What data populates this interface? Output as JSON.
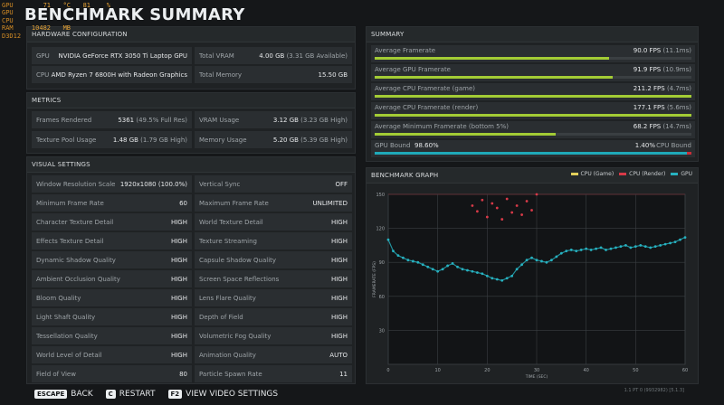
{
  "overlay": [
    {
      "k": "GPU",
      "v1": "71",
      "u1": "°C",
      "v2": "81",
      "u2": "%"
    },
    {
      "k": "GPU",
      "v1": "",
      "u1": "",
      "v2": "",
      "u2": ""
    },
    {
      "k": "CPU",
      "v1": "",
      "u1": "",
      "v2": "",
      "u2": ""
    },
    {
      "k": "RAM",
      "v1": "10482",
      "u1": "MB",
      "v2": "",
      "u2": ""
    },
    {
      "k": "D3D12",
      "v1": "",
      "u1": "",
      "v2": "",
      "u2": ""
    }
  ],
  "title": "BENCHMARK SUMMARY",
  "hardware": {
    "title": "HARDWARE CONFIGURATION",
    "gpu_label": "GPU",
    "gpu_value": "NVIDIA GeForce RTX 3050 Ti Laptop GPU",
    "vram_label": "Total VRAM",
    "vram_value": "4.00 GB",
    "vram_sub": "(3.31 GB Available)",
    "cpu_label": "CPU",
    "cpu_value": "AMD Ryzen 7 6800H with Radeon Graphics",
    "mem_label": "Total Memory",
    "mem_value": "15.50 GB"
  },
  "metrics": {
    "title": "METRICS",
    "frames_label": "Frames Rendered",
    "frames_value": "5361",
    "frames_sub": "(49.5% Full Res)",
    "vramu_label": "VRAM Usage",
    "vramu_value": "3.12 GB",
    "vramu_sub": "(3.23 GB High)",
    "pool_label": "Texture Pool Usage",
    "pool_value": "1.48 GB",
    "pool_sub": "(1.79 GB High)",
    "memu_label": "Memory Usage",
    "memu_value": "5.20 GB",
    "memu_sub": "(5.39 GB High)"
  },
  "visual": {
    "title": "VISUAL SETTINGS",
    "left": [
      {
        "k": "Window Resolution Scale",
        "v": "1920x1080 (100.0%)"
      },
      {
        "k": "Minimum Frame Rate",
        "v": "60"
      },
      {
        "k": "Character Texture Detail",
        "v": "HIGH"
      },
      {
        "k": "Effects Texture Detail",
        "v": "HIGH"
      },
      {
        "k": "Dynamic Shadow Quality",
        "v": "HIGH"
      },
      {
        "k": "Ambient Occlusion Quality",
        "v": "HIGH"
      },
      {
        "k": "Bloom Quality",
        "v": "HIGH"
      },
      {
        "k": "Light Shaft Quality",
        "v": "HIGH"
      },
      {
        "k": "Tessellation Quality",
        "v": "HIGH"
      },
      {
        "k": "World Level of Detail",
        "v": "HIGH"
      },
      {
        "k": "Field of View",
        "v": "80"
      }
    ],
    "right": [
      {
        "k": "Vertical Sync",
        "v": "OFF"
      },
      {
        "k": "Maximum Frame Rate",
        "v": "UNLIMITED"
      },
      {
        "k": "World Texture Detail",
        "v": "HIGH"
      },
      {
        "k": "Texture Streaming",
        "v": "HIGH"
      },
      {
        "k": "Capsule Shadow Quality",
        "v": "HIGH"
      },
      {
        "k": "Screen Space Reflections",
        "v": "HIGH"
      },
      {
        "k": "Lens Flare Quality",
        "v": "HIGH"
      },
      {
        "k": "Depth of Field",
        "v": "HIGH"
      },
      {
        "k": "Volumetric Fog Quality",
        "v": "HIGH"
      },
      {
        "k": "Animation Quality",
        "v": "AUTO"
      },
      {
        "k": "Particle Spawn Rate",
        "v": "11"
      }
    ]
  },
  "summary": {
    "title": "SUMMARY",
    "rows": [
      {
        "label": "Average Framerate",
        "value": "90.0 FPS",
        "sub": "(11.1ms)",
        "fill": 0.74
      },
      {
        "label": "Average GPU Framerate",
        "value": "91.9 FPS",
        "sub": "(10.9ms)",
        "fill": 0.75
      },
      {
        "label": "Average CPU Framerate (game)",
        "value": "211.2 FPS",
        "sub": "(4.7ms)",
        "fill": 1.0
      },
      {
        "label": "Average CPU Framerate (render)",
        "value": "177.1 FPS",
        "sub": "(5.6ms)",
        "fill": 1.0
      },
      {
        "label": "Average Minimum Framerate (bottom 5%)",
        "value": "68.2 FPS",
        "sub": "(14.7ms)",
        "fill": 0.57
      }
    ],
    "gpu_bound_label": "GPU Bound",
    "gpu_bound_value": "98.60%",
    "cpu_bound_value": "1.40%",
    "cpu_bound_label": "CPU Bound",
    "gpu_bound_fraction": 0.986
  },
  "graph": {
    "title": "BENCHMARK GRAPH",
    "legend": [
      {
        "name": "CPU (Game)",
        "color": "#e2cf5b"
      },
      {
        "name": "CPU (Render)",
        "color": "#d83a48"
      },
      {
        "name": "GPU",
        "color": "#27b2c0"
      }
    ]
  },
  "chart_data": {
    "type": "scatter",
    "xlabel": "TIME (SEC)",
    "ylabel": "FRAMERATE (FPS)",
    "xlim": [
      0,
      60
    ],
    "ylim": [
      0,
      150
    ],
    "x_ticks": [
      "0",
      "10",
      "20",
      "30",
      "40",
      "50",
      "60"
    ],
    "y_ticks": [
      "30",
      "60",
      "90",
      "120",
      "150"
    ],
    "series": [
      {
        "name": "GPU",
        "color": "#27b2c0",
        "x": [
          0,
          1,
          2,
          3,
          4,
          5,
          6,
          7,
          8,
          9,
          10,
          11,
          12,
          13,
          14,
          15,
          16,
          17,
          18,
          19,
          20,
          21,
          22,
          23,
          24,
          25,
          26,
          27,
          28,
          29,
          30,
          31,
          32,
          33,
          34,
          35,
          36,
          37,
          38,
          39,
          40,
          41,
          42,
          43,
          44,
          45,
          46,
          47,
          48,
          49,
          50,
          51,
          52,
          53,
          54,
          55,
          56,
          57,
          58,
          59,
          60
        ],
        "y": [
          110,
          100,
          96,
          94,
          92,
          91,
          90,
          88,
          86,
          84,
          82,
          84,
          87,
          89,
          86,
          84,
          83,
          82,
          81,
          80,
          78,
          76,
          75,
          74,
          76,
          78,
          84,
          88,
          92,
          94,
          92,
          91,
          90,
          92,
          95,
          98,
          100,
          101,
          100,
          101,
          102,
          101,
          102,
          103,
          101,
          102,
          103,
          104,
          105,
          103,
          104,
          105,
          104,
          103,
          104,
          105,
          106,
          107,
          108,
          110,
          112
        ]
      },
      {
        "name": "CPU (Render)",
        "color": "#d83a48",
        "x": [
          17,
          18,
          19,
          20,
          21,
          22,
          23,
          24,
          25,
          26,
          27,
          28,
          29,
          30
        ],
        "y": [
          140,
          135,
          145,
          130,
          142,
          138,
          128,
          146,
          134,
          140,
          132,
          144,
          136,
          150
        ]
      }
    ]
  },
  "footer": {
    "k1": "ESCAPE",
    "l1": "BACK",
    "k2": "C",
    "l2": "RESTART",
    "k3": "F2",
    "l3": "VIEW VIDEO SETTINGS",
    "version": "1.1 PT 0 (9932982) [5.1.3]"
  }
}
